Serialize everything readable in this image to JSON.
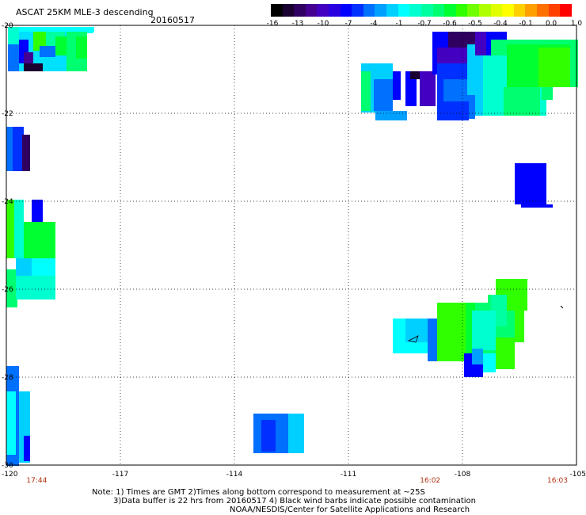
{
  "title": "ASCAT 25KM MLE-3 descending",
  "date": "20160517",
  "colorbar": {
    "labels": [
      "-16",
      "-13",
      "-10",
      "-7",
      "-4",
      "-1",
      "-0.7",
      "-0.6",
      "-0.5",
      "-0.4",
      "-0.1",
      "0.0",
      "1.0"
    ],
    "colors": [
      "#000000",
      "#1a0030",
      "#300060",
      "#440090",
      "#4400c0",
      "#2a00e0",
      "#0000ff",
      "#0030ff",
      "#0070ff",
      "#00a0ff",
      "#00d0ff",
      "#00ffff",
      "#00ffd0",
      "#00ffa0",
      "#00ff70",
      "#00ff30",
      "#30ff00",
      "#70ff00",
      "#b0ff00",
      "#e0ff00",
      "#ffff00",
      "#ffd000",
      "#ffa000",
      "#ff7000",
      "#ff4000",
      "#ff0000"
    ]
  },
  "axes": {
    "lon_labels": [
      "-120",
      "-117",
      "-114",
      "-111",
      "-108",
      "-105"
    ],
    "lat_labels": [
      "-20",
      "-22",
      "-24",
      "-26",
      "-28",
      "-30"
    ],
    "lon_range": [
      -120,
      -105
    ],
    "lat_range": [
      -20,
      -30
    ]
  },
  "times": [
    "17:44",
    "16:02",
    "16:03"
  ],
  "notes": {
    "line1": "Note: 1) Times are GMT 2)Times along bottom correspond to measurement at ~25S",
    "line2": "3)Data buffer is 22 hrs from 20160517 4) Black wind barbs indicate possible contamination",
    "line3": "NOAA/NESDIS/Center for Satellite Applications and Research"
  },
  "colors": {
    "time_label": "#b03010",
    "grid": "#000000"
  }
}
